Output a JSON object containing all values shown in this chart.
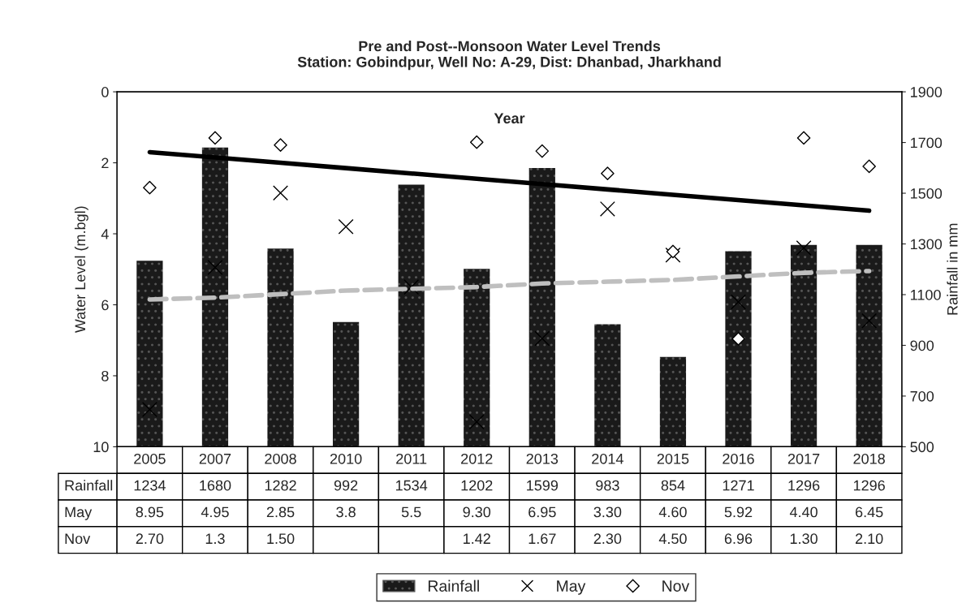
{
  "chart_data": {
    "type": "bar",
    "title": "Pre and Post--Monsoon Water Level Trends\nStation: Gobindpur, Well No: A-29, Dist: Dhanbad, Jharkhand",
    "xlabel": "Year",
    "ylabel": "Water Level (m.bgl)",
    "y2label": "Rainfall in mm",
    "categories": [
      "2005",
      "2007",
      "2008",
      "2010",
      "2011",
      "2012",
      "2013",
      "2014",
      "2015",
      "2016",
      "2017",
      "2018"
    ],
    "series": [
      {
        "name": "Rainfall",
        "axis": "y2",
        "color": "#1a1a1a",
        "values": [
          1234,
          1680,
          1282,
          992,
          1534,
          1202,
          1599,
          983,
          854,
          1271,
          1296,
          1296
        ],
        "value_labels": [
          "1234",
          "1680",
          "1282",
          "992",
          "1534",
          "1202",
          "1599",
          "983",
          "854",
          "1271",
          "1296",
          "1296"
        ]
      },
      {
        "name": "May",
        "type": "scatter",
        "marker": "cross",
        "color": "#000000",
        "values": [
          8.95,
          4.95,
          2.85,
          3.8,
          5.5,
          9.3,
          6.95,
          3.3,
          4.6,
          5.92,
          4.4,
          6.45
        ],
        "value_labels": [
          "8.95",
          "4.95",
          "2.85",
          "3.8",
          "5.5",
          "9.30",
          "6.95",
          "3.30",
          "4.60",
          "5.92",
          "4.40",
          "6.45"
        ]
      },
      {
        "name": "Nov",
        "type": "scatter",
        "marker": "diamond",
        "color": "#000000",
        "values": [
          2.7,
          1.3,
          1.5,
          null,
          null,
          1.42,
          1.67,
          2.3,
          4.5,
          6.96,
          1.3,
          2.1
        ],
        "value_labels": [
          "2.70",
          "1.3",
          "1.50",
          null,
          null,
          "1.42",
          "1.67",
          "2.30",
          "4.50",
          "6.96",
          "1.30",
          "2.10"
        ]
      },
      {
        "type": "line",
        "line_style": "solid",
        "color": "#000000",
        "values": [
          1.7,
          1.85,
          2.0,
          2.15,
          2.3,
          2.45,
          2.6,
          2.75,
          2.9,
          3.05,
          3.2,
          3.35
        ]
      },
      {
        "type": "line",
        "line_style": "dashed",
        "color": "#bfbfbf",
        "values": [
          5.85,
          5.8,
          5.7,
          5.6,
          5.55,
          5.5,
          5.4,
          5.35,
          5.3,
          5.2,
          5.1,
          5.05
        ]
      }
    ],
    "ylim": [
      10,
      0
    ],
    "yticks": [
      0,
      2,
      4,
      6,
      8,
      10
    ],
    "y2lim": [
      500,
      1900
    ],
    "y2ticks": [
      500,
      700,
      900,
      1100,
      1300,
      1500,
      1700,
      1900
    ],
    "grid": false,
    "legend": "bottom"
  }
}
